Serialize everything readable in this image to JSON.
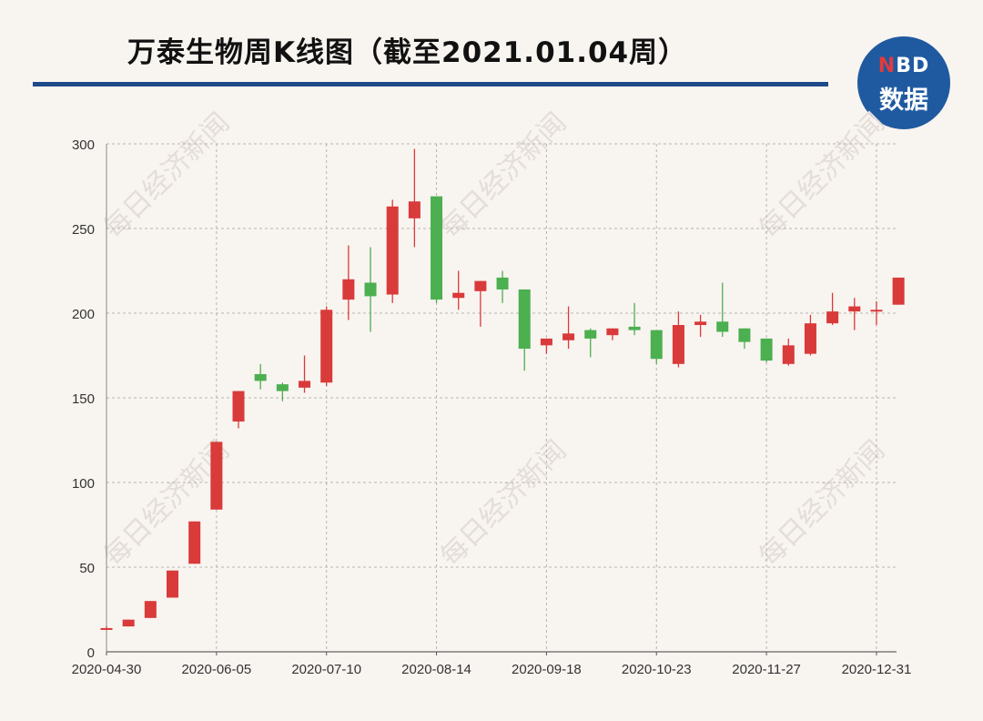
{
  "header": {
    "title": "万泰生物周K线图（截至2021.01.04周）"
  },
  "logo": {
    "brand_accent": "N",
    "brand_rest": "BD",
    "subtitle": "数据"
  },
  "watermark": "每日经济新闻",
  "colors": {
    "up": "#d93a3a",
    "down": "#4caf50",
    "rule": "#1e4a8a",
    "logo_bg": "#1f5aa0"
  },
  "chart_data": {
    "type": "candlestick",
    "title": "万泰生物周K线图（截至2021.01.04周）",
    "ylim": [
      0,
      300
    ],
    "yticks": [
      0,
      50,
      100,
      150,
      200,
      250,
      300
    ],
    "grid": true,
    "xtick_labels": [
      "2020-04-30",
      "2020-06-05",
      "2020-07-10",
      "2020-08-14",
      "2020-09-18",
      "2020-10-23",
      "2020-11-27",
      "2020-12-31"
    ],
    "candles": [
      {
        "open": 13,
        "close": 14,
        "high": 15,
        "low": 13
      },
      {
        "open": 15,
        "close": 19,
        "high": 19,
        "low": 15
      },
      {
        "open": 20,
        "close": 30,
        "high": 30,
        "low": 20
      },
      {
        "open": 32,
        "close": 48,
        "high": 48,
        "low": 32
      },
      {
        "open": 52,
        "close": 77,
        "high": 77,
        "low": 52
      },
      {
        "open": 84,
        "close": 124,
        "high": 124,
        "low": 84
      },
      {
        "open": 136,
        "close": 154,
        "high": 154,
        "low": 132
      },
      {
        "open": 164,
        "close": 160,
        "high": 170,
        "low": 155
      },
      {
        "open": 158,
        "close": 154,
        "high": 159,
        "low": 148
      },
      {
        "open": 156,
        "close": 160,
        "high": 175,
        "low": 153
      },
      {
        "open": 159,
        "close": 202,
        "high": 204,
        "low": 157
      },
      {
        "open": 208,
        "close": 220,
        "high": 240,
        "low": 196
      },
      {
        "open": 218,
        "close": 210,
        "high": 239,
        "low": 189
      },
      {
        "open": 211,
        "close": 263,
        "high": 267,
        "low": 206
      },
      {
        "open": 256,
        "close": 266,
        "high": 297,
        "low": 239
      },
      {
        "open": 269,
        "close": 208,
        "high": 269,
        "low": 206
      },
      {
        "open": 209,
        "close": 212,
        "high": 225,
        "low": 202
      },
      {
        "open": 213,
        "close": 219,
        "high": 219,
        "low": 192
      },
      {
        "open": 221,
        "close": 214,
        "high": 225,
        "low": 206
      },
      {
        "open": 214,
        "close": 179,
        "high": 214,
        "low": 166
      },
      {
        "open": 181,
        "close": 185,
        "high": 185,
        "low": 176
      },
      {
        "open": 184,
        "close": 188,
        "high": 204,
        "low": 179
      },
      {
        "open": 190,
        "close": 185,
        "high": 191,
        "low": 174
      },
      {
        "open": 187,
        "close": 191,
        "high": 191,
        "low": 184
      },
      {
        "open": 192,
        "close": 190,
        "high": 206,
        "low": 187
      },
      {
        "open": 190,
        "close": 173,
        "high": 190,
        "low": 170
      },
      {
        "open": 170,
        "close": 193,
        "high": 201,
        "low": 168
      },
      {
        "open": 193,
        "close": 195,
        "high": 199,
        "low": 186
      },
      {
        "open": 195,
        "close": 189,
        "high": 218,
        "low": 186
      },
      {
        "open": 191,
        "close": 183,
        "high": 191,
        "low": 179
      },
      {
        "open": 185,
        "close": 172,
        "high": 185,
        "low": 171
      },
      {
        "open": 170,
        "close": 181,
        "high": 185,
        "low": 169
      },
      {
        "open": 176,
        "close": 194,
        "high": 199,
        "low": 175
      },
      {
        "open": 194,
        "close": 201,
        "high": 212,
        "low": 193
      },
      {
        "open": 201,
        "close": 204,
        "high": 209,
        "low": 190
      },
      {
        "open": 202,
        "close": 202,
        "high": 207,
        "low": 193
      },
      {
        "open": 205,
        "close": 221,
        "high": 221,
        "low": 205
      }
    ]
  }
}
